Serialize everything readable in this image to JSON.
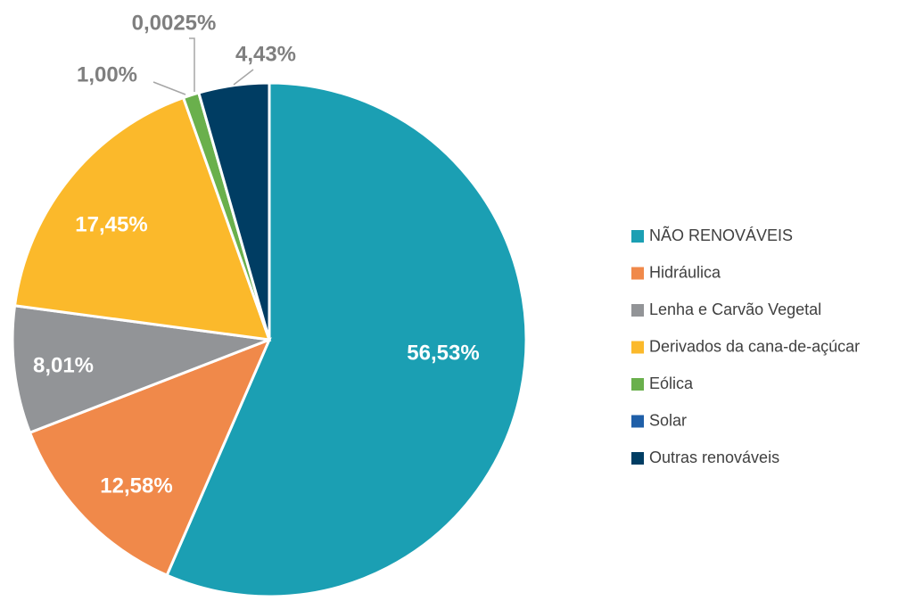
{
  "chart_data": {
    "type": "pie",
    "categories": [
      "NÃO RENOVÁVEIS",
      "Hidráulica",
      "Lenha e Carvão Vegetal",
      "Derivados da cana-de-açúcar",
      "Eólica",
      "Solar",
      "Outras renováveis"
    ],
    "values": [
      56.53,
      12.58,
      8.01,
      17.45,
      1.0,
      0.0025,
      4.43
    ],
    "value_labels": [
      "56,53%",
      "12,58%",
      "8,01%",
      "17,45%",
      "1,00%",
      "0,0025%",
      "4,43%"
    ],
    "colors": [
      "#1b9fb3",
      "#f0894a",
      "#929497",
      "#fbb92b",
      "#6ab04c",
      "#1f5fa8",
      "#003d63"
    ],
    "legend": "right"
  }
}
